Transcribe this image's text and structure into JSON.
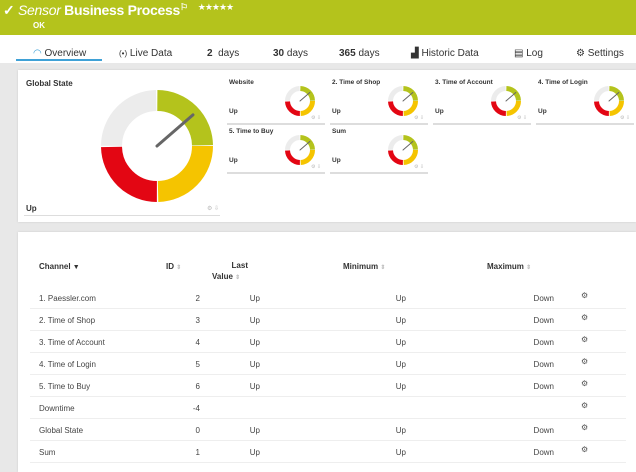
{
  "header": {
    "type": "Sensor",
    "name": "Business Process",
    "stars": "★★★★★",
    "status": "OK",
    "color": "#b4c31c"
  },
  "tabs": [
    {
      "label": "Overview",
      "icon": "gauge-icon"
    },
    {
      "label": "Live Data",
      "icon": "broadcast-icon"
    },
    {
      "num": "2",
      "unit": "days"
    },
    {
      "num": "30",
      "unit": "days"
    },
    {
      "num": "365",
      "unit": "days"
    },
    {
      "label": "Historic Data",
      "icon": "chart-icon"
    },
    {
      "label": "Log",
      "icon": "log-icon"
    },
    {
      "label": "Settings",
      "icon": "gear-icon"
    }
  ],
  "global_state": {
    "title": "Global State",
    "value": "Up"
  },
  "gauges": [
    {
      "title": "Website",
      "value": "Up"
    },
    {
      "title": "2. Time of Shop",
      "value": "Up"
    },
    {
      "title": "3. Time of Account",
      "value": "Up"
    },
    {
      "title": "4. Time of Login",
      "value": "Up"
    },
    {
      "title": "5. Time to Buy",
      "value": "Up"
    },
    {
      "title": "Sum",
      "value": "Up"
    }
  ],
  "gauge_colors": {
    "gray": "#ececec",
    "green": "#b4c31c",
    "yellow": "#f5c400",
    "red": "#e30613"
  },
  "table": {
    "headers": {
      "channel": "Channel",
      "id": "ID",
      "last1": "Last",
      "last2": "Value",
      "min": "Minimum",
      "max": "Maximum"
    },
    "rows": [
      {
        "channel": "1. Paessler.com",
        "id": "2",
        "last": "Up",
        "min": "Up",
        "max": "Down"
      },
      {
        "channel": "2. Time of Shop",
        "id": "3",
        "last": "Up",
        "min": "Up",
        "max": "Down"
      },
      {
        "channel": "3. Time of Account",
        "id": "4",
        "last": "Up",
        "min": "Up",
        "max": "Down"
      },
      {
        "channel": "4. Time of Login",
        "id": "5",
        "last": "Up",
        "min": "Up",
        "max": "Down"
      },
      {
        "channel": "5. Time to Buy",
        "id": "6",
        "last": "Up",
        "min": "Up",
        "max": "Down"
      },
      {
        "channel": "Downtime",
        "id": "-4",
        "last": "",
        "min": "",
        "max": ""
      },
      {
        "channel": "Global State",
        "id": "0",
        "last": "Up",
        "min": "Up",
        "max": "Down"
      },
      {
        "channel": "Sum",
        "id": "1",
        "last": "Up",
        "min": "Up",
        "max": "Down"
      }
    ]
  }
}
